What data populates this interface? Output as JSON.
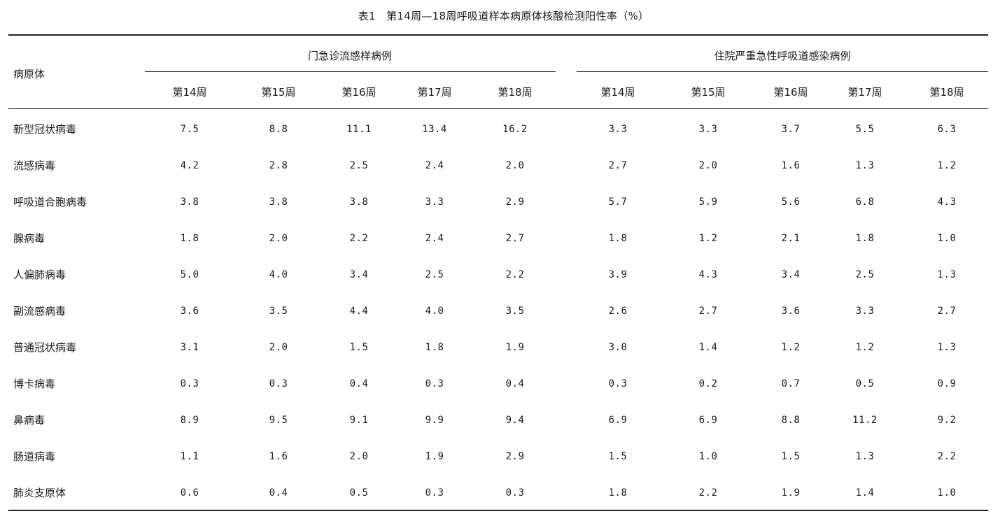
{
  "table": {
    "caption": "表1　第14周—18周呼吸道样本病原体核酸检测阳性率（%）",
    "row_header": "病原体",
    "groups": [
      {
        "label": "门急诊流感样病例",
        "weeks": [
          "第14周",
          "第15周",
          "第16周",
          "第17周",
          "第18周"
        ]
      },
      {
        "label": "住院严重急性呼吸道感染病例",
        "weeks": [
          "第14周",
          "第15周",
          "第16周",
          "第17周",
          "第18周"
        ]
      }
    ],
    "rows": [
      {
        "name": "新型冠状病毒",
        "values": [
          "7.5",
          "8.8",
          "11.1",
          "13.4",
          "16.2",
          "3.3",
          "3.3",
          "3.7",
          "5.5",
          "6.3"
        ]
      },
      {
        "name": "流感病毒",
        "values": [
          "4.2",
          "2.8",
          "2.5",
          "2.4",
          "2.0",
          "2.7",
          "2.0",
          "1.6",
          "1.3",
          "1.2"
        ]
      },
      {
        "name": "呼吸道合胞病毒",
        "values": [
          "3.8",
          "3.8",
          "3.8",
          "3.3",
          "2.9",
          "5.7",
          "5.9",
          "5.6",
          "6.8",
          "4.3"
        ]
      },
      {
        "name": "腺病毒",
        "values": [
          "1.8",
          "2.0",
          "2.2",
          "2.4",
          "2.7",
          "1.8",
          "1.2",
          "2.1",
          "1.8",
          "1.0"
        ]
      },
      {
        "name": "人偏肺病毒",
        "values": [
          "5.0",
          "4.0",
          "3.4",
          "2.5",
          "2.2",
          "3.9",
          "4.3",
          "3.4",
          "2.5",
          "1.3"
        ]
      },
      {
        "name": "副流感病毒",
        "values": [
          "3.6",
          "3.5",
          "4.4",
          "4.0",
          "3.5",
          "2.6",
          "2.7",
          "3.6",
          "3.3",
          "2.7"
        ]
      },
      {
        "name": "普通冠状病毒",
        "values": [
          "3.1",
          "2.0",
          "1.5",
          "1.8",
          "1.9",
          "3.0",
          "1.4",
          "1.2",
          "1.2",
          "1.3"
        ]
      },
      {
        "name": "博卡病毒",
        "values": [
          "0.3",
          "0.3",
          "0.4",
          "0.3",
          "0.4",
          "0.3",
          "0.2",
          "0.7",
          "0.5",
          "0.9"
        ]
      },
      {
        "name": "鼻病毒",
        "values": [
          "8.9",
          "9.5",
          "9.1",
          "9.9",
          "9.4",
          "6.9",
          "6.9",
          "8.8",
          "11.2",
          "9.2"
        ]
      },
      {
        "name": "肠道病毒",
        "values": [
          "1.1",
          "1.6",
          "2.0",
          "1.9",
          "2.9",
          "1.5",
          "1.0",
          "1.5",
          "1.3",
          "2.2"
        ]
      },
      {
        "name": "肺炎支原体",
        "values": [
          "0.6",
          "0.4",
          "0.5",
          "0.3",
          "0.3",
          "1.8",
          "2.2",
          "1.9",
          "1.4",
          "1.0"
        ]
      }
    ]
  }
}
